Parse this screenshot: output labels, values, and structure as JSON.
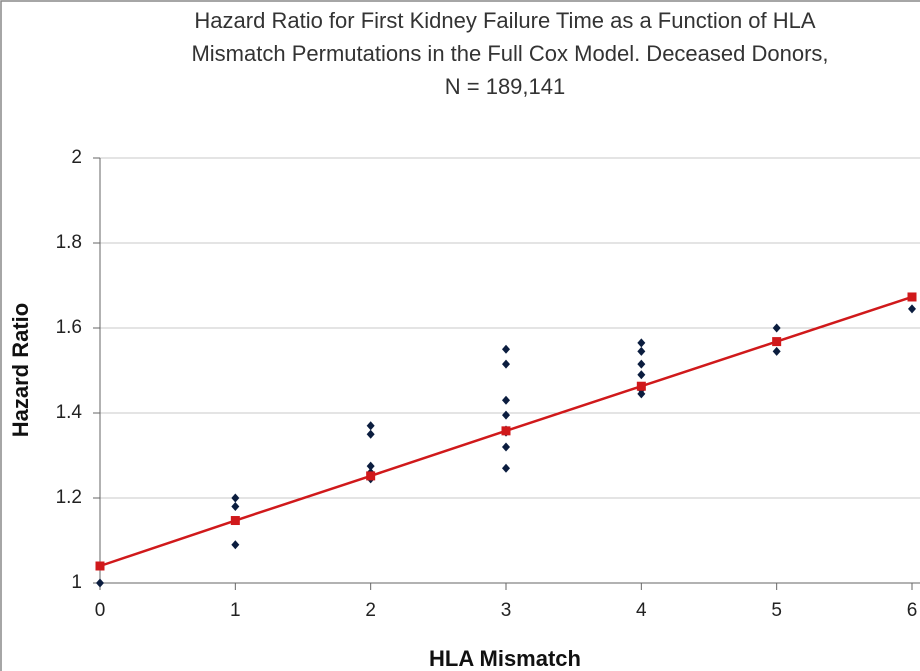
{
  "chart_data": {
    "type": "scatter",
    "title": [
      "Hazard Ratio for First Kidney Failure Time as a Function of HLA",
      "Mismatch Permutations in the Full Cox Model. Deceased Donors,",
      "N = 189,141"
    ],
    "x_label": "HLA Mismatch",
    "y_label": "Hazard Ratio",
    "xlim": [
      0,
      6
    ],
    "xticks": [
      0,
      1,
      2,
      3,
      4,
      5,
      6
    ],
    "ylim": [
      1,
      2
    ],
    "yticks": [
      1,
      1.2,
      1.4,
      1.6,
      1.8,
      2
    ],
    "grid": true,
    "series": [
      {
        "color": "#0b1d3f",
        "marker": "diamond",
        "line": false,
        "x": [
          0,
          1,
          1,
          1,
          2,
          2,
          2,
          2,
          2,
          2,
          3,
          3,
          3,
          3,
          3,
          3,
          3,
          3,
          4,
          4,
          4,
          4,
          4,
          4,
          5,
          5,
          6
        ],
        "values": [
          1.0,
          1.2,
          1.18,
          1.09,
          1.37,
          1.35,
          1.275,
          1.26,
          1.25,
          1.245,
          1.55,
          1.515,
          1.43,
          1.395,
          1.36,
          1.355,
          1.32,
          1.27,
          1.565,
          1.545,
          1.515,
          1.49,
          1.455,
          1.445,
          1.6,
          1.545,
          1.645
        ]
      },
      {
        "color": "#d0191b",
        "marker": "square",
        "line": true,
        "x": [
          0,
          1,
          2,
          3,
          4,
          5,
          6
        ],
        "values": [
          1.04,
          1.147,
          1.252,
          1.358,
          1.463,
          1.568,
          1.673
        ]
      }
    ]
  }
}
